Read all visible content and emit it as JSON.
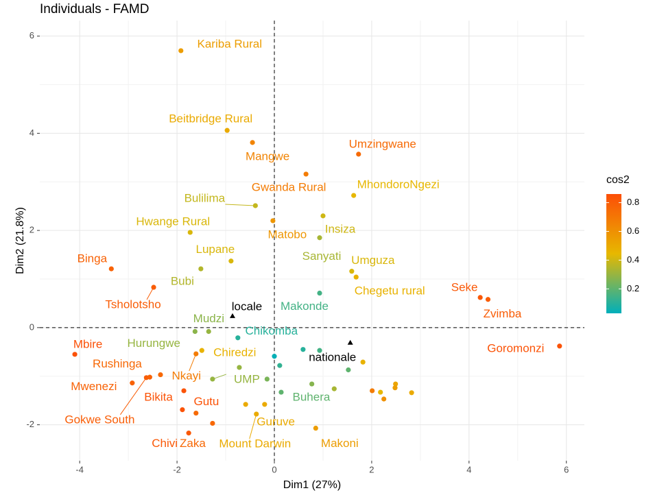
{
  "chart_data": {
    "type": "scatter",
    "title": "Individuals - FAMD",
    "x_label": "Dim1 (27%)",
    "y_label": "Dim2 (21.8%)",
    "xlim": [
      -4.82,
      6.37
    ],
    "ylim": [
      -2.74,
      6.32
    ],
    "xticks": [
      -4,
      -2,
      0,
      2,
      4,
      6
    ],
    "yticks": [
      -2,
      0,
      2,
      4,
      6
    ],
    "grid": true,
    "hline": 0,
    "vline": 0,
    "legend_title": "cos2",
    "color_range": [
      0.03,
      0.86
    ],
    "colors": [
      "#00AFBB",
      "#E7B800",
      "#FC4E07"
    ],
    "colorbar_ticks": [
      0.2,
      0.4,
      0.6,
      0.8
    ],
    "points": [
      {
        "label": "Kariba Rural",
        "x": -1.92,
        "y": 5.7,
        "cos2": 0.55
      },
      {
        "label": "Beitbridge Rural",
        "x": -0.97,
        "y": 4.06,
        "cos2": 0.5
      },
      {
        "label": "Mangwe",
        "x": -0.45,
        "y": 3.81,
        "cos2": 0.65
      },
      {
        "label": "Umzingwane",
        "x": 1.73,
        "y": 3.57,
        "cos2": 0.75
      },
      {
        "label": "Gwanda Rural",
        "x": 0.65,
        "y": 3.16,
        "cos2": 0.68
      },
      {
        "label": "MhondoroNgezi",
        "x": 1.63,
        "y": 2.72,
        "cos2": 0.45
      },
      {
        "label": "Bulilima",
        "x": -0.39,
        "y": 2.51,
        "cos2": 0.38
      },
      {
        "label": "Matobo",
        "x": -0.03,
        "y": 2.2,
        "cos2": 0.58
      },
      {
        "label": "Insiza",
        "x": 1.0,
        "y": 2.3,
        "cos2": 0.4
      },
      {
        "label": "Hwange Rural",
        "x": -1.73,
        "y": 1.96,
        "cos2": 0.42
      },
      {
        "label": "Sanyati",
        "x": 0.93,
        "y": 1.85,
        "cos2": 0.33
      },
      {
        "label": "Lupane",
        "x": -0.89,
        "y": 1.37,
        "cos2": 0.42
      },
      {
        "label": "Umguza",
        "x": 1.59,
        "y": 1.16,
        "cos2": 0.42
      },
      {
        "label": "Chegetu rural",
        "x": 1.68,
        "y": 1.04,
        "cos2": 0.47
      },
      {
        "label": "Binga",
        "x": -3.35,
        "y": 1.21,
        "cos2": 0.78
      },
      {
        "label": "Bubi",
        "x": -1.51,
        "y": 1.21,
        "cos2": 0.35
      },
      {
        "label": "Tsholotsho",
        "x": -2.48,
        "y": 0.83,
        "cos2": 0.8
      },
      {
        "label": "Seke",
        "x": 4.23,
        "y": 0.62,
        "cos2": 0.82
      },
      {
        "label": "Zvimba",
        "x": 4.39,
        "y": 0.58,
        "cos2": 0.8
      },
      {
        "label": "Makonde",
        "x": 0.93,
        "y": 0.71,
        "cos2": 0.15
      },
      {
        "label": "Mudzi",
        "x": -1.63,
        "y": -0.08,
        "cos2": 0.28
      },
      {
        "label": "Hurungwe",
        "x": -1.35,
        "y": -0.08,
        "cos2": 0.3
      },
      {
        "label": "Chikomba",
        "x": -0.75,
        "y": -0.21,
        "cos2": 0.1
      },
      {
        "label": "Goromonzi",
        "x": 5.86,
        "y": -0.38,
        "cos2": 0.84
      },
      {
        "label": "Mbire",
        "x": -4.1,
        "y": -0.55,
        "cos2": 0.85
      },
      {
        "label": "Chiredzi",
        "x": -1.49,
        "y": -0.47,
        "cos2": 0.47
      },
      {
        "label": "Nkayi",
        "x": -1.61,
        "y": -0.54,
        "cos2": 0.68
      },
      {
        "label": "Rushinga",
        "x": -2.34,
        "y": -0.97,
        "cos2": 0.76
      },
      {
        "label": "Mwenezi",
        "x": -2.92,
        "y": -1.14,
        "cos2": 0.78
      },
      {
        "label": "Gokwe South",
        "x": -2.63,
        "y": -1.03,
        "cos2": 0.8
      },
      {
        "label": "UMP",
        "x": -1.27,
        "y": -1.06,
        "cos2": 0.3
      },
      {
        "label": "Bikita",
        "x": -1.86,
        "y": -1.3,
        "cos2": 0.84
      },
      {
        "label": "Gutu",
        "x": -1.89,
        "y": -1.69,
        "cos2": 0.84
      },
      {
        "label": "Buhera",
        "x": 0.14,
        "y": -1.33,
        "cos2": 0.2
      },
      {
        "label": "Guruve",
        "x": -0.59,
        "y": -1.58,
        "cos2": 0.5
      },
      {
        "label": "Mount Darwin",
        "x": -0.37,
        "y": -1.78,
        "cos2": 0.5
      },
      {
        "label": "Chivi",
        "x": -1.76,
        "y": -2.17,
        "cos2": 0.82
      },
      {
        "label": "Zaka",
        "x": -1.27,
        "y": -1.97,
        "cos2": 0.76
      },
      {
        "label": "Makoni",
        "x": 0.85,
        "y": -2.07,
        "cos2": 0.55
      },
      {
        "label": null,
        "x": -2.56,
        "y": -1.02,
        "cos2": 0.78
      },
      {
        "label": null,
        "x": -1.61,
        "y": -1.76,
        "cos2": 0.75
      },
      {
        "label": null,
        "x": 1.82,
        "y": -0.71,
        "cos2": 0.47
      },
      {
        "label": null,
        "x": 0.59,
        "y": -0.45,
        "cos2": 0.1
      },
      {
        "label": null,
        "x": 0.93,
        "y": -0.47,
        "cos2": 0.15
      },
      {
        "label": null,
        "x": 0.0,
        "y": -0.59,
        "cos2": 0.04
      },
      {
        "label": null,
        "x": 0.11,
        "y": -0.78,
        "cos2": 0.12
      },
      {
        "label": null,
        "x": -0.72,
        "y": -0.82,
        "cos2": 0.3
      },
      {
        "label": null,
        "x": -0.15,
        "y": -1.06,
        "cos2": 0.25
      },
      {
        "label": null,
        "x": 0.77,
        "y": -1.16,
        "cos2": 0.27
      },
      {
        "label": null,
        "x": 1.23,
        "y": -1.26,
        "cos2": 0.33
      },
      {
        "label": null,
        "x": 1.52,
        "y": -0.87,
        "cos2": 0.2
      },
      {
        "label": null,
        "x": 2.49,
        "y": -1.16,
        "cos2": 0.52
      },
      {
        "label": null,
        "x": 2.48,
        "y": -1.24,
        "cos2": 0.55
      },
      {
        "label": null,
        "x": 2.01,
        "y": -1.3,
        "cos2": 0.68
      },
      {
        "label": null,
        "x": 2.18,
        "y": -1.33,
        "cos2": 0.45
      },
      {
        "label": null,
        "x": 2.25,
        "y": -1.47,
        "cos2": 0.6
      },
      {
        "label": null,
        "x": 2.82,
        "y": -1.34,
        "cos2": 0.5
      },
      {
        "label": null,
        "x": -0.2,
        "y": -1.58,
        "cos2": 0.5
      }
    ],
    "supplementary": [
      {
        "label": "locale",
        "x": -0.86,
        "y": 0.24
      },
      {
        "label": "nationale",
        "x": 1.56,
        "y": -0.31
      }
    ]
  }
}
